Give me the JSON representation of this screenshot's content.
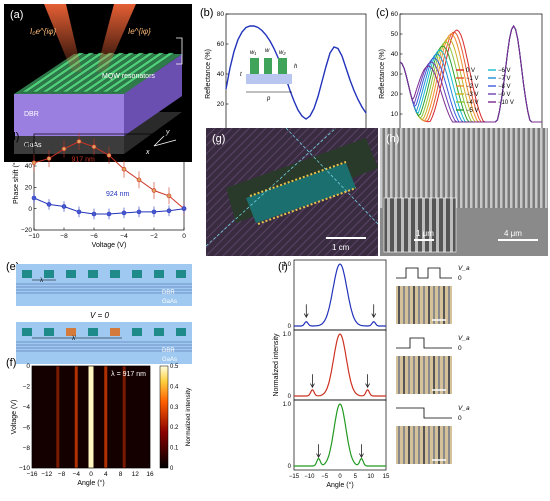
{
  "panels": {
    "a": {
      "label": "(a)",
      "texts": {
        "beam_in": "I₀e^{iφ}",
        "beam_out": "Ie^{iφ}",
        "resonators": "MQW resonators",
        "dbr": "DBR",
        "gaas": "GaAs",
        "x": "x",
        "y": "y"
      }
    },
    "b": {
      "label": "(b)"
    },
    "c": {
      "label": "(c)"
    },
    "d": {
      "label": "(d)"
    },
    "e": {
      "label": "(e)",
      "texts": {
        "dbr": "DBR",
        "gaas": "GaAs",
        "lambda": "λ",
        "lambda_prime": "λ'",
        "v0": "V = 0"
      }
    },
    "f": {
      "label": "(f)",
      "texts": {
        "lambda": "λ = 917 nm"
      }
    },
    "g": {
      "label": "(g)",
      "texts": {
        "scale": "1 cm"
      }
    },
    "h": {
      "label": "(h)",
      "texts": {
        "scale_inset": "1 μm",
        "scale_main": "4 μm"
      }
    },
    "i": {
      "label": "(i)",
      "texts": {
        "va": "V_a",
        "zero": "0"
      }
    }
  },
  "colors": {
    "blue": "#2233bb",
    "red": "#cc3322",
    "green": "#229922",
    "bg": "#ffffff"
  },
  "chart_data": [
    {
      "id": "b",
      "type": "line",
      "title": "",
      "xlabel": "Wavelength (nm)",
      "ylabel": "Reflectance (%)",
      "xlim": [
        915,
        950
      ],
      "ylim": [
        0,
        80
      ],
      "xticks": [
        915,
        920,
        925,
        930,
        935,
        940,
        945,
        950
      ],
      "yticks": [
        0,
        20,
        40,
        60,
        80
      ],
      "inset_labels": {
        "w1": "w₁",
        "w": "w",
        "w2": "w₂",
        "t": "t",
        "h": "h",
        "p": "p"
      },
      "series": [
        {
          "color": "#2233bb",
          "x": [
            915,
            916,
            917,
            918,
            919,
            920,
            921,
            922,
            923,
            924,
            925,
            926,
            927,
            928,
            929,
            930,
            931,
            932,
            933,
            934,
            935,
            936,
            937,
            938,
            939,
            940,
            941,
            942,
            943,
            944,
            945,
            946,
            947,
            948,
            949,
            950
          ],
          "y": [
            30,
            44,
            55,
            63,
            68,
            71,
            72,
            72,
            71,
            69,
            66,
            62,
            57,
            51,
            44,
            37,
            29,
            22,
            16,
            12,
            10,
            12,
            17,
            25,
            35,
            45,
            54,
            58,
            57,
            52,
            44,
            36,
            29,
            23,
            18,
            14
          ]
        }
      ]
    },
    {
      "id": "c",
      "type": "line",
      "title": "",
      "xlabel": "Wavelength (nm)",
      "ylabel": "Reflectance (%)",
      "xlim": [
        915,
        950
      ],
      "ylim": [
        0,
        60
      ],
      "xticks": [
        915,
        920,
        925,
        930,
        935,
        940,
        945,
        950
      ],
      "yticks": [
        0,
        10,
        20,
        30,
        40,
        50,
        60
      ],
      "legend": [
        "0 V",
        "−1 V",
        "−2 V",
        "−3 V",
        "−4 V",
        "−5 V",
        "−6 V",
        "−7 V",
        "−8 V",
        "−9 V",
        "−10 V"
      ],
      "series_colors": [
        "#d62728",
        "#e8552a",
        "#f28e2b",
        "#c9b325",
        "#8cc43c",
        "#2ca02c",
        "#17becf",
        "#1f8fd6",
        "#3b5bdb",
        "#6a3fb5",
        "#7a2b8f"
      ],
      "peaks": [
        52,
        51,
        50,
        48,
        46,
        44,
        42,
        40,
        38,
        36,
        34
      ],
      "peak_positions": [
        929,
        928.3,
        927.6,
        926.9,
        926.2,
        925.5,
        924.8,
        924.1,
        923.4,
        922.7,
        922
      ],
      "second_peak": {
        "x": 943,
        "y": 54
      }
    },
    {
      "id": "d",
      "type": "line",
      "title": "",
      "xlabel": "Voltage (V)",
      "ylabel": "Phase shift (°)",
      "xlim": [
        -10,
        0
      ],
      "ylim": [
        -20,
        70
      ],
      "xticks": [
        -10,
        -8,
        -6,
        -4,
        -2,
        0
      ],
      "yticks": [
        -20,
        0,
        20,
        40,
        60
      ],
      "series": [
        {
          "name": "917 nm",
          "color": "#cc3322",
          "x": [
            -10,
            -9,
            -8,
            -7,
            -6,
            -5,
            -4,
            -3,
            -2,
            -1,
            0
          ],
          "y": [
            43,
            47,
            56,
            63,
            58,
            50,
            37,
            27,
            17,
            12,
            0
          ],
          "err": [
            8,
            8,
            8,
            8,
            8,
            8,
            8,
            8,
            8,
            8,
            6
          ]
        },
        {
          "name": "924 nm",
          "color": "#2233bb",
          "x": [
            -10,
            -9,
            -8,
            -7,
            -6,
            -5,
            -4,
            -3,
            -2,
            -1,
            0
          ],
          "y": [
            10,
            4,
            2,
            -3,
            -5,
            -5,
            -4,
            -3,
            -3,
            -2,
            0
          ],
          "err": [
            5,
            5,
            5,
            5,
            5,
            5,
            5,
            5,
            5,
            5,
            5
          ]
        }
      ]
    },
    {
      "id": "f",
      "type": "heatmap",
      "title": "",
      "xlabel": "Angle (°)",
      "ylabel": "Voltage (V)",
      "xlim": [
        -16,
        16
      ],
      "ylim": [
        -10,
        0
      ],
      "xticks": [
        -16,
        -12,
        -8,
        -4,
        0,
        4,
        8,
        12,
        16
      ],
      "yticks": [
        -10,
        -8,
        -6,
        -4,
        -2,
        0
      ],
      "colorbar_label": "Normalized intensity",
      "colorbar_ticks": [
        0,
        0.1,
        0.2,
        0.3,
        0.4,
        0.5
      ],
      "bright_lines_angle": [
        -9,
        -4,
        0,
        4,
        9
      ]
    },
    {
      "id": "i",
      "type": "line",
      "title": "",
      "xlabel": "Angle (°)",
      "ylabel": "Normalized intensity",
      "xlim": [
        -15,
        15
      ],
      "ylim": [
        0,
        1
      ],
      "xticks": [
        -15,
        -10,
        -5,
        0,
        5,
        10,
        15
      ],
      "series": [
        {
          "color": "#2233bb",
          "main_width": 3.5,
          "side": [
            -11,
            11
          ],
          "side_h": 0.07
        },
        {
          "color": "#cc3322",
          "main_width": 3.2,
          "side": [
            -9,
            9
          ],
          "side_h": 0.1
        },
        {
          "color": "#229922",
          "main_width": 3.0,
          "side": [
            -7,
            7
          ],
          "side_h": 0.12
        }
      ],
      "ytick_labels": [
        "0",
        "1.0"
      ]
    }
  ]
}
